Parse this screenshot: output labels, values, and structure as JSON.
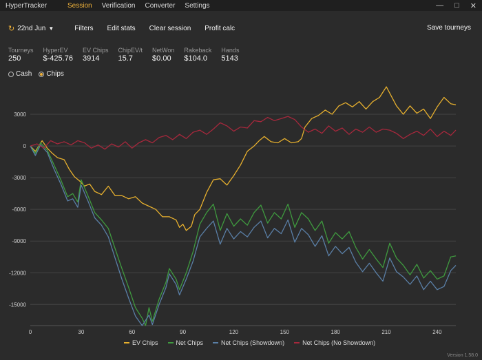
{
  "app": {
    "title": "HyperTracker"
  },
  "menu": [
    "Session",
    "Verification",
    "Converter",
    "Settings"
  ],
  "window_controls": [
    "—",
    "□",
    "✕"
  ],
  "toolbar": {
    "date": "22nd Jun",
    "buttons": [
      "Filters",
      "Edit stats",
      "Clear session",
      "Profit calc"
    ],
    "save": "Save tourneys"
  },
  "stats": [
    {
      "label": "Tourneys",
      "value": "250"
    },
    {
      "label": "HyperEV",
      "value": "$-425.76"
    },
    {
      "label": "EV Chips",
      "value": "3914"
    },
    {
      "label": "ChipEV/t",
      "value": "15.7"
    },
    {
      "label": "NetWon",
      "value": "$0.00"
    },
    {
      "label": "Rakeback",
      "value": "$104.0"
    },
    {
      "label": "Hands",
      "value": "5143"
    }
  ],
  "radios": {
    "cash": "Cash",
    "chips": "Chips",
    "selected": "chips"
  },
  "colors": {
    "accent": "#f0b23a",
    "ev": "#e7b02e",
    "net": "#3f9a3f",
    "showdown": "#5a7fa6",
    "noshowdown": "#a6283c"
  },
  "version": "Version 1.58.0",
  "chart_data": {
    "type": "line",
    "x_ticks": [
      0,
      30,
      60,
      90,
      120,
      150,
      180,
      210,
      240
    ],
    "y_ticks": [
      3000,
      0,
      -3000,
      -6000,
      -9000,
      -12000,
      -15000
    ],
    "xlim": [
      0,
      251
    ],
    "ylim": [
      -17000,
      6000
    ],
    "grid": true,
    "legend_position": "bottom",
    "series": [
      {
        "name": "EV Chips",
        "color": "#e7b02e",
        "points": [
          [
            0,
            0
          ],
          [
            3,
            -500
          ],
          [
            7,
            500
          ],
          [
            10,
            -200
          ],
          [
            13,
            -700
          ],
          [
            16,
            -1100
          ],
          [
            20,
            -1300
          ],
          [
            23,
            -2200
          ],
          [
            26,
            -2900
          ],
          [
            29,
            -3300
          ],
          [
            32,
            -3800
          ],
          [
            35,
            -3600
          ],
          [
            38,
            -4300
          ],
          [
            42,
            -4600
          ],
          [
            46,
            -3800
          ],
          [
            50,
            -4700
          ],
          [
            54,
            -4700
          ],
          [
            58,
            -5000
          ],
          [
            62,
            -4800
          ],
          [
            66,
            -5400
          ],
          [
            70,
            -5700
          ],
          [
            74,
            -6000
          ],
          [
            78,
            -6700
          ],
          [
            82,
            -6700
          ],
          [
            86,
            -7000
          ],
          [
            88,
            -7700
          ],
          [
            90,
            -7400
          ],
          [
            92,
            -8000
          ],
          [
            95,
            -7600
          ],
          [
            97,
            -6500
          ],
          [
            100,
            -6000
          ],
          [
            104,
            -4400
          ],
          [
            108,
            -3200
          ],
          [
            112,
            -3100
          ],
          [
            116,
            -3700
          ],
          [
            120,
            -2800
          ],
          [
            124,
            -1800
          ],
          [
            128,
            -500
          ],
          [
            132,
            0
          ],
          [
            135,
            500
          ],
          [
            138,
            900
          ],
          [
            142,
            400
          ],
          [
            146,
            300
          ],
          [
            150,
            700
          ],
          [
            154,
            300
          ],
          [
            158,
            400
          ],
          [
            160,
            700
          ],
          [
            162,
            1800
          ],
          [
            166,
            2600
          ],
          [
            170,
            2900
          ],
          [
            174,
            3400
          ],
          [
            178,
            3000
          ],
          [
            182,
            3800
          ],
          [
            186,
            4100
          ],
          [
            190,
            3700
          ],
          [
            194,
            4200
          ],
          [
            198,
            3500
          ],
          [
            202,
            4200
          ],
          [
            206,
            4600
          ],
          [
            210,
            5600
          ],
          [
            212,
            5000
          ],
          [
            216,
            3800
          ],
          [
            220,
            3000
          ],
          [
            224,
            3800
          ],
          [
            228,
            3100
          ],
          [
            232,
            3500
          ],
          [
            236,
            2600
          ],
          [
            240,
            3700
          ],
          [
            244,
            4600
          ],
          [
            248,
            4000
          ],
          [
            251,
            3900
          ]
        ]
      },
      {
        "name": "Net Chips",
        "color": "#3f9a3f",
        "points": [
          [
            0,
            0
          ],
          [
            3,
            -700
          ],
          [
            6,
            300
          ],
          [
            10,
            -400
          ],
          [
            14,
            -1800
          ],
          [
            18,
            -3200
          ],
          [
            22,
            -4800
          ],
          [
            25,
            -4500
          ],
          [
            28,
            -5300
          ],
          [
            30,
            -3200
          ],
          [
            34,
            -4700
          ],
          [
            38,
            -6300
          ],
          [
            42,
            -7000
          ],
          [
            46,
            -7800
          ],
          [
            50,
            -9700
          ],
          [
            54,
            -11600
          ],
          [
            58,
            -13400
          ],
          [
            62,
            -15300
          ],
          [
            66,
            -16300
          ],
          [
            68,
            -17000
          ],
          [
            70,
            -15300
          ],
          [
            72,
            -16600
          ],
          [
            76,
            -14500
          ],
          [
            80,
            -12900
          ],
          [
            82,
            -11600
          ],
          [
            86,
            -12600
          ],
          [
            88,
            -13600
          ],
          [
            92,
            -12000
          ],
          [
            96,
            -10000
          ],
          [
            100,
            -7400
          ],
          [
            104,
            -6300
          ],
          [
            108,
            -5500
          ],
          [
            112,
            -8000
          ],
          [
            116,
            -6400
          ],
          [
            120,
            -7600
          ],
          [
            124,
            -6900
          ],
          [
            128,
            -7500
          ],
          [
            132,
            -6300
          ],
          [
            136,
            -5600
          ],
          [
            140,
            -7300
          ],
          [
            144,
            -6300
          ],
          [
            148,
            -6900
          ],
          [
            152,
            -5500
          ],
          [
            156,
            -7700
          ],
          [
            160,
            -6300
          ],
          [
            164,
            -6900
          ],
          [
            168,
            -8000
          ],
          [
            172,
            -7100
          ],
          [
            176,
            -9200
          ],
          [
            180,
            -8200
          ],
          [
            184,
            -8800
          ],
          [
            188,
            -8100
          ],
          [
            192,
            -9600
          ],
          [
            196,
            -10700
          ],
          [
            200,
            -9800
          ],
          [
            204,
            -10700
          ],
          [
            208,
            -11500
          ],
          [
            212,
            -9200
          ],
          [
            216,
            -10600
          ],
          [
            220,
            -11300
          ],
          [
            224,
            -12200
          ],
          [
            228,
            -11200
          ],
          [
            232,
            -12500
          ],
          [
            236,
            -11800
          ],
          [
            240,
            -12600
          ],
          [
            244,
            -12300
          ],
          [
            248,
            -10500
          ],
          [
            251,
            -10400
          ]
        ]
      },
      {
        "name": "Net Chips (Showdown)",
        "color": "#5a7fa6",
        "points": [
          [
            0,
            0
          ],
          [
            3,
            -900
          ],
          [
            6,
            100
          ],
          [
            10,
            -600
          ],
          [
            14,
            -2200
          ],
          [
            18,
            -3600
          ],
          [
            22,
            -5200
          ],
          [
            25,
            -5000
          ],
          [
            28,
            -5800
          ],
          [
            30,
            -3700
          ],
          [
            34,
            -5200
          ],
          [
            38,
            -6800
          ],
          [
            42,
            -7500
          ],
          [
            46,
            -8600
          ],
          [
            50,
            -10600
          ],
          [
            54,
            -12600
          ],
          [
            58,
            -14400
          ],
          [
            62,
            -16100
          ],
          [
            66,
            -17000
          ],
          [
            70,
            -16000
          ],
          [
            72,
            -16900
          ],
          [
            76,
            -15000
          ],
          [
            80,
            -13400
          ],
          [
            82,
            -12100
          ],
          [
            86,
            -13100
          ],
          [
            88,
            -14100
          ],
          [
            92,
            -12600
          ],
          [
            96,
            -10900
          ],
          [
            100,
            -8600
          ],
          [
            104,
            -7800
          ],
          [
            108,
            -7100
          ],
          [
            112,
            -9300
          ],
          [
            116,
            -7800
          ],
          [
            120,
            -8800
          ],
          [
            124,
            -8100
          ],
          [
            128,
            -8600
          ],
          [
            132,
            -7700
          ],
          [
            136,
            -7100
          ],
          [
            140,
            -8700
          ],
          [
            144,
            -7800
          ],
          [
            148,
            -8300
          ],
          [
            152,
            -7000
          ],
          [
            156,
            -9100
          ],
          [
            160,
            -7800
          ],
          [
            164,
            -8400
          ],
          [
            168,
            -9500
          ],
          [
            172,
            -8500
          ],
          [
            176,
            -10400
          ],
          [
            180,
            -9500
          ],
          [
            184,
            -10200
          ],
          [
            188,
            -9600
          ],
          [
            192,
            -11000
          ],
          [
            196,
            -11900
          ],
          [
            200,
            -11100
          ],
          [
            204,
            -12000
          ],
          [
            208,
            -12800
          ],
          [
            212,
            -10600
          ],
          [
            216,
            -11900
          ],
          [
            220,
            -12400
          ],
          [
            224,
            -13100
          ],
          [
            228,
            -12300
          ],
          [
            232,
            -13600
          ],
          [
            236,
            -12800
          ],
          [
            240,
            -13600
          ],
          [
            244,
            -13300
          ],
          [
            248,
            -11800
          ],
          [
            251,
            -11300
          ]
        ]
      },
      {
        "name": "Net Chips (No Showdown)",
        "color": "#a6283c",
        "points": [
          [
            0,
            0
          ],
          [
            4,
            200
          ],
          [
            8,
            -200
          ],
          [
            12,
            500
          ],
          [
            16,
            200
          ],
          [
            20,
            400
          ],
          [
            24,
            100
          ],
          [
            28,
            500
          ],
          [
            32,
            300
          ],
          [
            36,
            -200
          ],
          [
            40,
            100
          ],
          [
            44,
            -300
          ],
          [
            48,
            200
          ],
          [
            52,
            -100
          ],
          [
            56,
            400
          ],
          [
            60,
            -200
          ],
          [
            64,
            300
          ],
          [
            68,
            600
          ],
          [
            72,
            300
          ],
          [
            76,
            800
          ],
          [
            80,
            1000
          ],
          [
            84,
            600
          ],
          [
            88,
            1100
          ],
          [
            92,
            700
          ],
          [
            96,
            1300
          ],
          [
            100,
            1500
          ],
          [
            104,
            1100
          ],
          [
            108,
            1600
          ],
          [
            112,
            2200
          ],
          [
            116,
            1900
          ],
          [
            120,
            1400
          ],
          [
            124,
            1800
          ],
          [
            128,
            1700
          ],
          [
            132,
            2400
          ],
          [
            136,
            2300
          ],
          [
            140,
            2700
          ],
          [
            144,
            2400
          ],
          [
            148,
            2600
          ],
          [
            152,
            2800
          ],
          [
            156,
            2500
          ],
          [
            160,
            1800
          ],
          [
            164,
            1300
          ],
          [
            168,
            1600
          ],
          [
            172,
            1200
          ],
          [
            176,
            1900
          ],
          [
            180,
            1400
          ],
          [
            184,
            1700
          ],
          [
            188,
            1100
          ],
          [
            192,
            1600
          ],
          [
            196,
            1300
          ],
          [
            200,
            1800
          ],
          [
            204,
            1300
          ],
          [
            208,
            1600
          ],
          [
            212,
            1500
          ],
          [
            216,
            1200
          ],
          [
            220,
            700
          ],
          [
            224,
            1100
          ],
          [
            228,
            1400
          ],
          [
            232,
            1000
          ],
          [
            236,
            1600
          ],
          [
            240,
            900
          ],
          [
            244,
            1400
          ],
          [
            248,
            1000
          ],
          [
            251,
            1500
          ]
        ]
      }
    ]
  }
}
